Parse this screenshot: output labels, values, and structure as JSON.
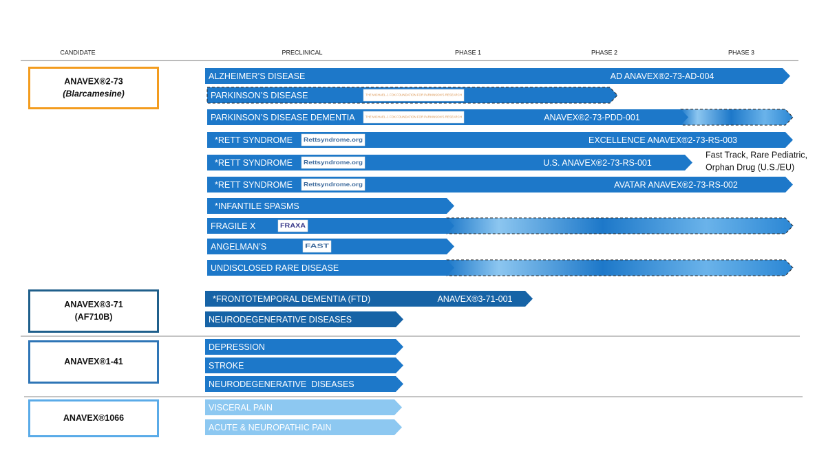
{
  "header": {
    "columns": [
      "CANDIDATE",
      "PRECLINICAL",
      "PHASE 1",
      "PHASE 2",
      "PHASE 3"
    ]
  },
  "candidates": [
    {
      "name": "ANAVEX®2-73",
      "alias": "(Blarcamesine)"
    },
    {
      "name": "ANAVEX®3-71",
      "alias": "(AF710B)"
    },
    {
      "name": "ANAVEX®1-41"
    },
    {
      "name": "ANAVEX®1066"
    }
  ],
  "programs": [
    {
      "indication": "ALZHEIMER’S DISEASE",
      "trial": "AD ANAVEX®2-73-AD-004"
    },
    {
      "indication": "PARKINSON’S DISEASE",
      "partner": "THE MICHAEL J. FOX FOUNDATION FOR PARKINSON’S RESEARCH"
    },
    {
      "indication": "PARKINSON’S DISEASE DEMENTIA",
      "partner": "THE MICHAEL J. FOX FOUNDATION FOR PARKINSON’S RESEARCH",
      "trial": "ANAVEX®2-73-PDD-001"
    },
    {
      "indication": "*RETT SYNDROME",
      "partner": "Rettsyndrome.org",
      "trial": "EXCELLENCE ANAVEX®2-73-RS-003"
    },
    {
      "indication": "*RETT SYNDROME",
      "partner": "Rettsyndrome.org",
      "trial": "U.S. ANAVEX®2-73-RS-001"
    },
    {
      "indication": "*RETT SYNDROME",
      "partner": "Rettsyndrome.org",
      "trial": "AVATAR ANAVEX®2-73-RS-002"
    },
    {
      "indication": "*INFANTILE SPASMS"
    },
    {
      "indication": "FRAGILE X",
      "partner": "FRAXA"
    },
    {
      "indication": "ANGELMAN’S",
      "partner": "FAST"
    },
    {
      "indication": "UNDISCLOSED RARE DISEASE"
    },
    {
      "indication": "*FRONTOTEMPORAL DEMENTIA (FTD)",
      "trial": "ANAVEX®3-71-001"
    },
    {
      "indication": "NEURODEGENERATIVE DISEASES"
    },
    {
      "indication": "DEPRESSION"
    },
    {
      "indication": "STROKE"
    },
    {
      "indication": "NEURODEGENERATIVE  DISEASES"
    },
    {
      "indication": "VISCERAL PAIN"
    },
    {
      "indication": "ACUTE & NEUROPATHIC PAIN"
    }
  ],
  "annotation": [
    "Fast Track, Rare Pediatric,",
    "Orphan Drug (U.S./EU)"
  ]
}
